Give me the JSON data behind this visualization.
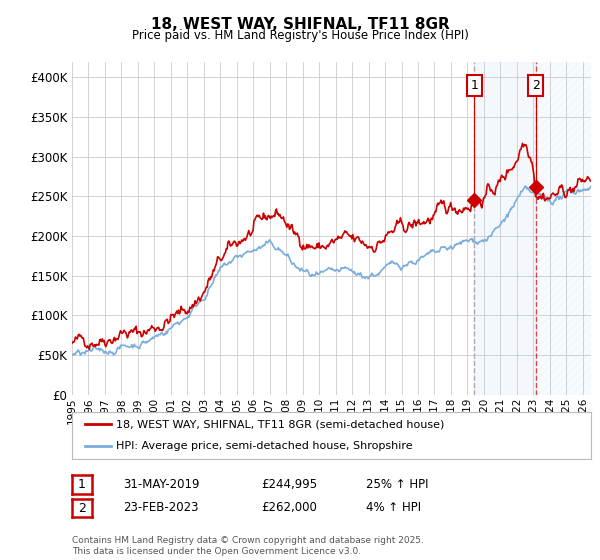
{
  "title": "18, WEST WAY, SHIFNAL, TF11 8GR",
  "subtitle": "Price paid vs. HM Land Registry's House Price Index (HPI)",
  "legend_line1": "18, WEST WAY, SHIFNAL, TF11 8GR (semi-detached house)",
  "legend_line2": "HPI: Average price, semi-detached house, Shropshire",
  "transaction1_date": "31-MAY-2019",
  "transaction1_price": "£244,995",
  "transaction1_hpi": "25% ↑ HPI",
  "transaction2_date": "23-FEB-2023",
  "transaction2_price": "£262,000",
  "transaction2_hpi": "4% ↑ HPI",
  "footer": "Contains HM Land Registry data © Crown copyright and database right 2025.\nThis data is licensed under the Open Government Licence v3.0.",
  "ylim": [
    0,
    420000
  ],
  "yticks": [
    0,
    50000,
    100000,
    150000,
    200000,
    250000,
    300000,
    350000,
    400000
  ],
  "red_color": "#cc0000",
  "blue_color": "#7aaddc",
  "vline1_color": "#aaaaaa",
  "vline2_color": "#cc0000",
  "background_color": "#ffffff",
  "grid_color": "#cccccc",
  "sale1_x": 2019.42,
  "sale2_x": 2023.14,
  "sale1_y": 244995,
  "sale2_y": 262000,
  "x_min": 1995,
  "x_max": 2026.5
}
